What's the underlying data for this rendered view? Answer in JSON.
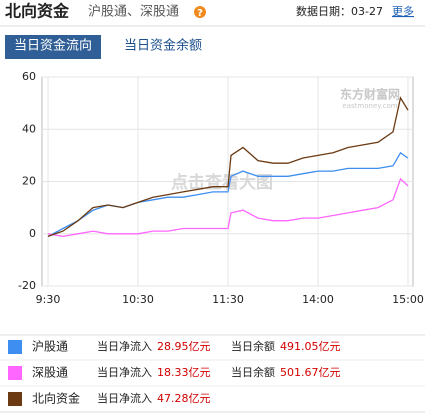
{
  "header": {
    "title": "北向资金",
    "subtitle": "沪股通、深股通",
    "date": "数据日期：03-27",
    "more": "更多"
  },
  "tabs": [
    "当日资金流向",
    "当日资金余额"
  ],
  "chart_data": {
    "type": "line",
    "watermark": "东方财富网",
    "watermark_sub": "eastmoney.com",
    "overlay": "点击查看大图",
    "x": [
      0,
      10,
      20,
      30,
      40,
      50,
      60,
      70,
      80,
      90,
      100,
      110,
      120,
      122,
      130,
      140,
      150,
      160,
      170,
      180,
      190,
      200,
      210,
      220,
      230,
      235,
      240
    ],
    "xlim": [
      0,
      240
    ],
    "xticks": [
      {
        "value": 0,
        "label": "9:30"
      },
      {
        "value": 60,
        "label": "10:30"
      },
      {
        "value": 120,
        "label": "11:30"
      },
      {
        "value": 180,
        "label": "14:00"
      },
      {
        "value": 240,
        "label": "15:00"
      }
    ],
    "ylim": [
      -20,
      60
    ],
    "yticks": [
      -20,
      0,
      20,
      40,
      60
    ],
    "grid": true,
    "series": [
      {
        "name": "沪股通",
        "color": "#3d8ef0",
        "values": [
          -1,
          2,
          5,
          9,
          11,
          10,
          12,
          13,
          14,
          14,
          15,
          16,
          16,
          22,
          24,
          22,
          22,
          22,
          23,
          24,
          24,
          25,
          25,
          25,
          26,
          31,
          28.95
        ]
      },
      {
        "name": "深股通",
        "color": "#ff66ff",
        "values": [
          0,
          -1,
          0,
          1,
          0,
          0,
          0,
          1,
          1,
          2,
          2,
          2,
          2,
          8,
          9,
          6,
          5,
          5,
          6,
          6,
          7,
          8,
          9,
          10,
          13,
          21,
          18.33
        ]
      },
      {
        "name": "北向资金",
        "color": "#6b3a12",
        "values": [
          -1,
          1,
          5,
          10,
          11,
          10,
          12,
          14,
          15,
          16,
          17,
          18,
          18,
          30,
          33,
          28,
          27,
          27,
          29,
          30,
          31,
          33,
          34,
          35,
          39,
          52,
          47.28
        ]
      }
    ]
  },
  "summary": [
    {
      "net_label": "当日净流入",
      "net": "28.95亿元",
      "balance_label": "当日余额",
      "balance": "491.05亿元"
    },
    {
      "net_label": "当日净流入",
      "net": "18.33亿元",
      "balance_label": "当日余额",
      "balance": "501.67亿元"
    },
    {
      "net_label": "当日净流入",
      "net": "47.28亿元"
    }
  ]
}
